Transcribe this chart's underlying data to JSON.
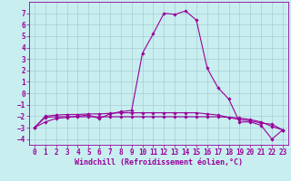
{
  "xlabel": "Windchill (Refroidissement éolien,°C)",
  "background_color": "#c8eef0",
  "grid_color": "#a8cdd4",
  "line_color": "#990099",
  "x": [
    0,
    1,
    2,
    3,
    4,
    5,
    6,
    7,
    8,
    9,
    10,
    11,
    12,
    13,
    14,
    15,
    16,
    17,
    18,
    19,
    20,
    21,
    22,
    23
  ],
  "y_main": [
    -3.0,
    -2.5,
    -2.2,
    -2.1,
    -2.0,
    -1.9,
    -2.2,
    -1.8,
    -1.6,
    -1.5,
    3.5,
    5.2,
    7.0,
    6.9,
    7.2,
    6.4,
    2.2,
    0.5,
    -0.5,
    -2.5,
    -2.5,
    -2.8,
    -4.0,
    -3.2
  ],
  "y_line2": [
    -3.0,
    -2.0,
    -1.9,
    -1.85,
    -1.85,
    -1.8,
    -1.8,
    -1.75,
    -1.7,
    -1.7,
    -1.7,
    -1.7,
    -1.7,
    -1.7,
    -1.7,
    -1.7,
    -1.8,
    -1.9,
    -2.1,
    -2.3,
    -2.4,
    -2.6,
    -2.7,
    -3.2
  ],
  "y_line3": [
    -3.0,
    -2.1,
    -2.05,
    -2.05,
    -2.05,
    -2.05,
    -2.05,
    -2.05,
    -2.05,
    -2.05,
    -2.05,
    -2.05,
    -2.05,
    -2.05,
    -2.05,
    -2.05,
    -2.05,
    -2.05,
    -2.1,
    -2.15,
    -2.3,
    -2.5,
    -2.9,
    -3.2
  ],
  "ylim": [
    -4.5,
    8.0
  ],
  "yticks": [
    -4,
    -3,
    -2,
    -1,
    0,
    1,
    2,
    3,
    4,
    5,
    6,
    7
  ],
  "xlim": [
    -0.5,
    23.5
  ],
  "xticks": [
    0,
    1,
    2,
    3,
    4,
    5,
    6,
    7,
    8,
    9,
    10,
    11,
    12,
    13,
    14,
    15,
    16,
    17,
    18,
    19,
    20,
    21,
    22,
    23
  ],
  "marker": "D",
  "marker_size": 1.8,
  "line_width": 0.8,
  "tick_fontsize": 5.5,
  "label_fontsize": 6.0
}
